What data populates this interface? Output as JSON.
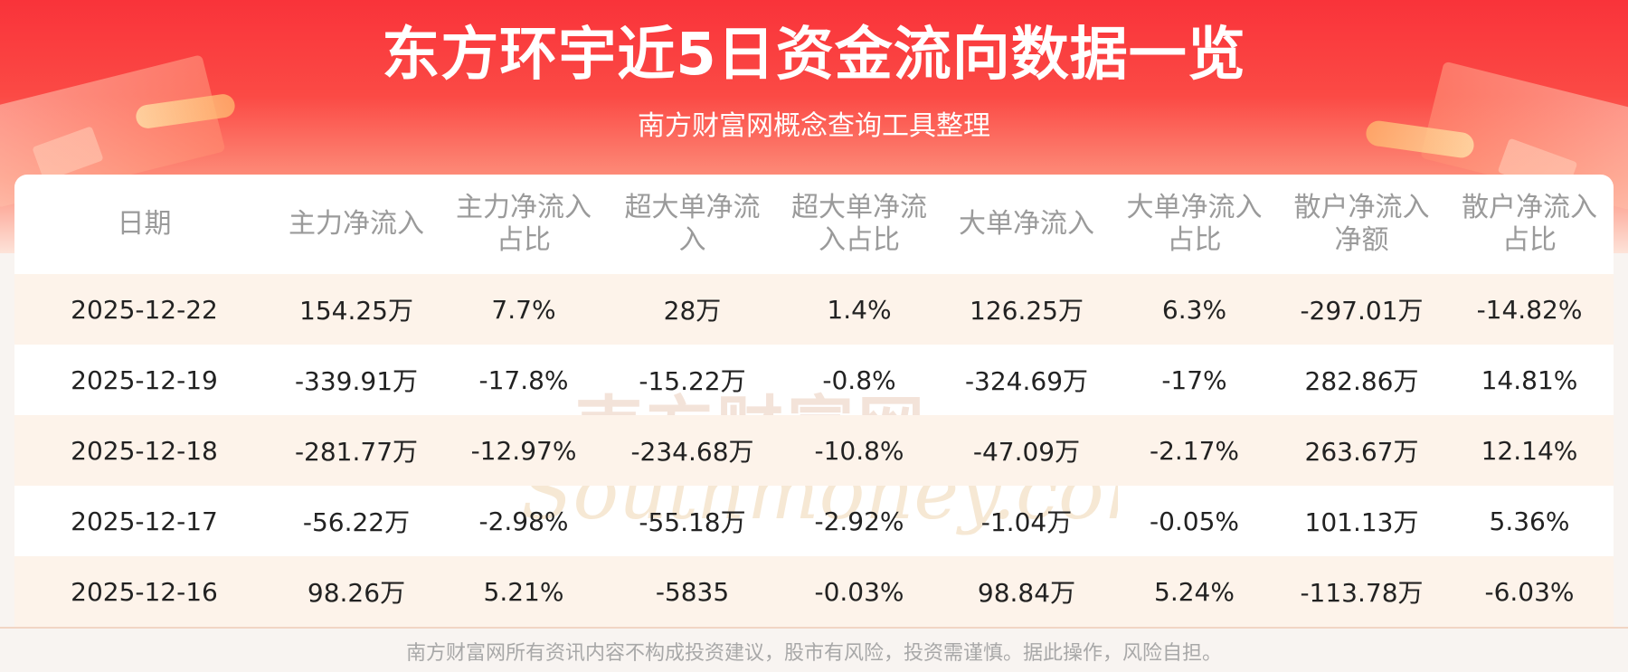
{
  "header": {
    "title": "东方环宇近5日资金流向数据一览",
    "subtitle": "南方财富网概念查询工具整理"
  },
  "table": {
    "columns": [
      "日期",
      "主力净流入",
      "主力净流入占比",
      "超大单净流入",
      "超大单净流入占比",
      "大单净流入",
      "大单净流入占比",
      "散户净流入净额",
      "散户净流入占比"
    ],
    "rows": [
      [
        "2025-12-22",
        "154.25万",
        "7.7%",
        "28万",
        "1.4%",
        "126.25万",
        "6.3%",
        "-297.01万",
        "-14.82%"
      ],
      [
        "2025-12-19",
        "-339.91万",
        "-17.8%",
        "-15.22万",
        "-0.8%",
        "-324.69万",
        "-17%",
        "282.86万",
        "14.81%"
      ],
      [
        "2025-12-18",
        "-281.77万",
        "-12.97%",
        "-234.68万",
        "-10.8%",
        "-47.09万",
        "-2.17%",
        "263.67万",
        "12.14%"
      ],
      [
        "2025-12-17",
        "-56.22万",
        "-2.98%",
        "-55.18万",
        "-2.92%",
        "-1.04万",
        "-0.05%",
        "101.13万",
        "5.36%"
      ],
      [
        "2025-12-16",
        "98.26万",
        "5.21%",
        "-5835",
        "-0.03%",
        "98.84万",
        "5.24%",
        "-113.78万",
        "-6.03%"
      ]
    ]
  },
  "watermark": {
    "cn_text": "南方财富网",
    "en_text": "Southmoney.com"
  },
  "footer": {
    "disclaimer": "南方财富网所有资讯内容不构成投资建议，股市有风险，投资需谨慎。据此操作，风险自担。"
  },
  "colors": {
    "banner_red": "#f9333a",
    "row_shade": "#fdf3ea",
    "header_text": "#9a9a9a",
    "cell_text": "#222222"
  }
}
